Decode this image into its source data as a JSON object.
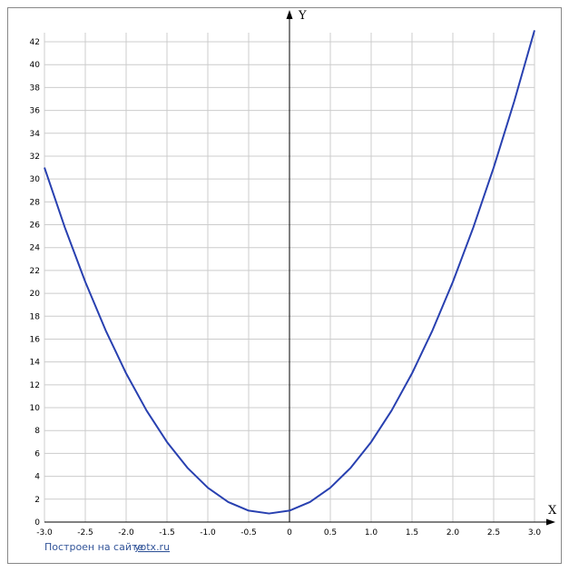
{
  "chart_data": {
    "type": "line",
    "x_label": "X",
    "y_label": "Y",
    "x": [
      -3,
      -2.75,
      -2.5,
      -2.25,
      -2,
      -1.75,
      -1.5,
      -1.25,
      -1,
      -0.75,
      -0.5,
      -0.25,
      0,
      0.25,
      0.5,
      0.75,
      1,
      1.25,
      1.5,
      1.75,
      2,
      2.25,
      2.5,
      2.75,
      3
    ],
    "series": [
      {
        "color": "#2840b0",
        "values": [
          31,
          25.75,
          21,
          16.75,
          13,
          9.75,
          7,
          4.75,
          3,
          1.75,
          1,
          0.75,
          1,
          1.75,
          3,
          4.75,
          7,
          9.75,
          13,
          16.75,
          21,
          25.75,
          31,
          36.75,
          43
        ]
      }
    ],
    "xlim": [
      -3,
      3
    ],
    "ylim": [
      0,
      42
    ],
    "xticks": [
      {
        "value": -3,
        "label": "-3.0"
      },
      -2.5,
      {
        "value": -2,
        "label": "-2.0"
      },
      -1.5,
      {
        "value": -1,
        "label": "-1.0"
      },
      -0.5,
      0,
      0.5,
      {
        "value": 1,
        "label": "1.0"
      },
      1.5,
      {
        "value": 2,
        "label": "2.0"
      },
      2.5,
      {
        "value": 3,
        "label": "3.0"
      }
    ],
    "yticks": [
      0,
      2,
      4,
      6,
      8,
      10,
      12,
      14,
      16,
      18,
      20,
      22,
      24,
      26,
      28,
      30,
      32,
      34,
      36,
      38,
      40,
      42
    ],
    "grid": true
  },
  "footer": {
    "text": "Построен на сайте",
    "link": "yotx.ru"
  }
}
